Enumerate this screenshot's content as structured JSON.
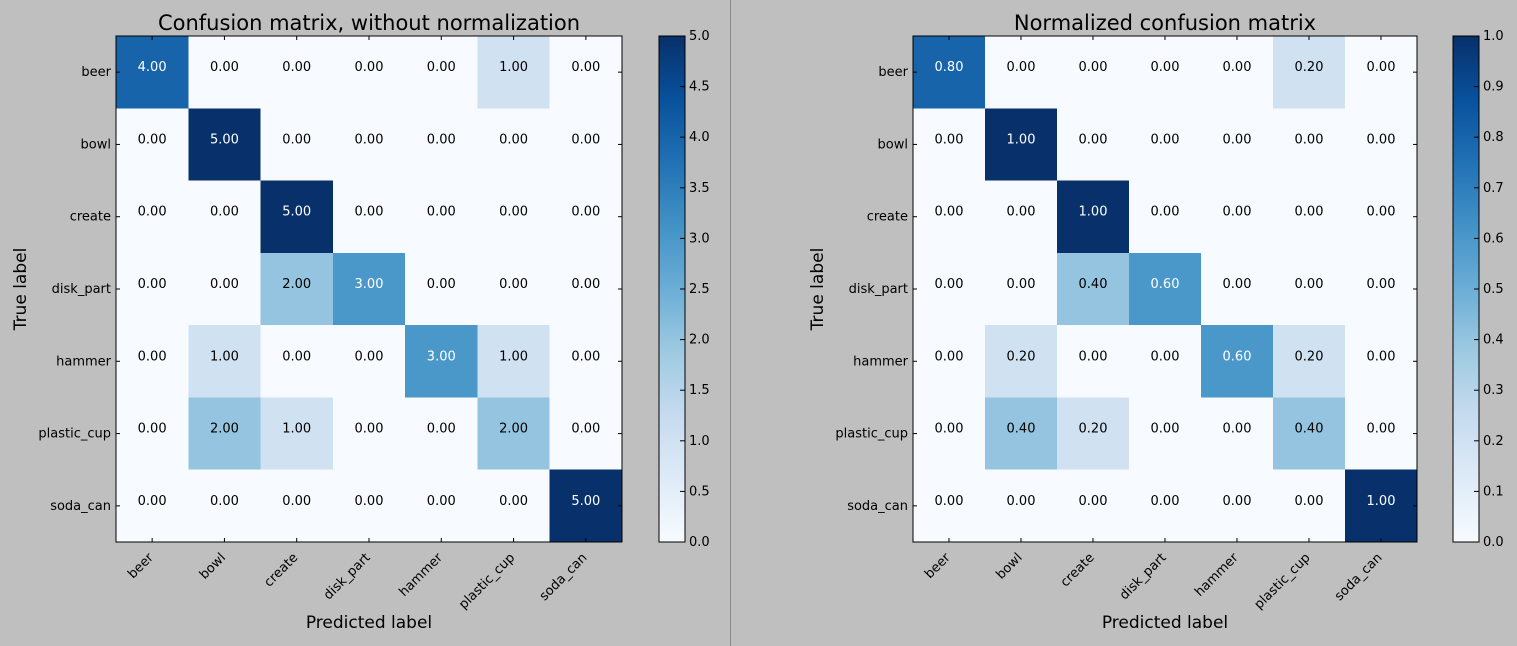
{
  "chart_data": [
    {
      "type": "heatmap",
      "title": "Confusion matrix, without normalization",
      "xlabel": "Predicted label",
      "ylabel": "True label",
      "x_categories": [
        "beer",
        "bowl",
        "create",
        "disk_part",
        "hammer",
        "plastic_cup",
        "soda_can"
      ],
      "y_categories": [
        "beer",
        "bowl",
        "create",
        "disk_part",
        "hammer",
        "plastic_cup",
        "soda_can"
      ],
      "values": [
        [
          4,
          0,
          0,
          0,
          0,
          1,
          0
        ],
        [
          0,
          5,
          0,
          0,
          0,
          0,
          0
        ],
        [
          0,
          0,
          5,
          0,
          0,
          0,
          0
        ],
        [
          0,
          0,
          2,
          3,
          0,
          0,
          0
        ],
        [
          0,
          1,
          0,
          0,
          3,
          1,
          0
        ],
        [
          0,
          2,
          1,
          0,
          0,
          2,
          0
        ],
        [
          0,
          0,
          0,
          0,
          0,
          0,
          5
        ]
      ],
      "value_format_decimals": 2,
      "colormap": "Blues",
      "colorbar": {
        "range": [
          0,
          5
        ],
        "ticks": [
          "0.0",
          "0.5",
          "1.0",
          "1.5",
          "2.0",
          "2.5",
          "3.0",
          "3.5",
          "4.0",
          "4.5",
          "5.0"
        ]
      }
    },
    {
      "type": "heatmap",
      "title": "Normalized confusion matrix",
      "xlabel": "Predicted label",
      "ylabel": "True label",
      "x_categories": [
        "beer",
        "bowl",
        "create",
        "disk_part",
        "hammer",
        "plastic_cup",
        "soda_can"
      ],
      "y_categories": [
        "beer",
        "bowl",
        "create",
        "disk_part",
        "hammer",
        "plastic_cup",
        "soda_can"
      ],
      "values": [
        [
          0.8,
          0,
          0,
          0,
          0,
          0.2,
          0
        ],
        [
          0,
          1,
          0,
          0,
          0,
          0,
          0
        ],
        [
          0,
          0,
          1,
          0,
          0,
          0,
          0
        ],
        [
          0,
          0,
          0.4,
          0.6,
          0,
          0,
          0
        ],
        [
          0,
          0.2,
          0,
          0,
          0.6,
          0.2,
          0
        ],
        [
          0,
          0.4,
          0.2,
          0,
          0,
          0.4,
          0
        ],
        [
          0,
          0,
          0,
          0,
          0,
          0,
          1
        ]
      ],
      "value_format_decimals": 2,
      "colormap": "Blues",
      "colorbar": {
        "range": [
          0,
          1
        ],
        "ticks": [
          "0.0",
          "0.1",
          "0.2",
          "0.3",
          "0.4",
          "0.5",
          "0.6",
          "0.7",
          "0.8",
          "0.9",
          "1.0"
        ]
      }
    }
  ]
}
